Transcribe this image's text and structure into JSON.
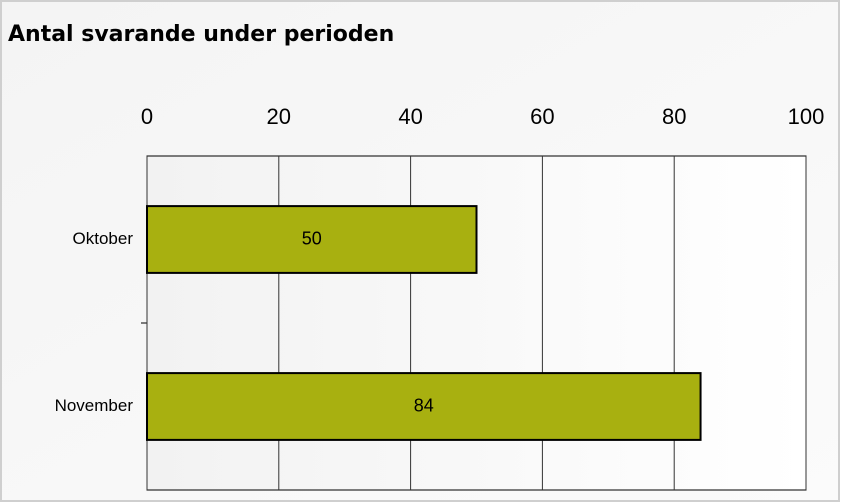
{
  "chart_data": {
    "type": "bar",
    "orientation": "horizontal",
    "title": "Antal svarande under perioden",
    "categories": [
      "Oktober",
      "November"
    ],
    "values": [
      50,
      84
    ],
    "color": "#a8b010",
    "xlim": [
      0,
      100
    ],
    "xticks": [
      0,
      20,
      40,
      60,
      80,
      100
    ],
    "grid": true
  }
}
